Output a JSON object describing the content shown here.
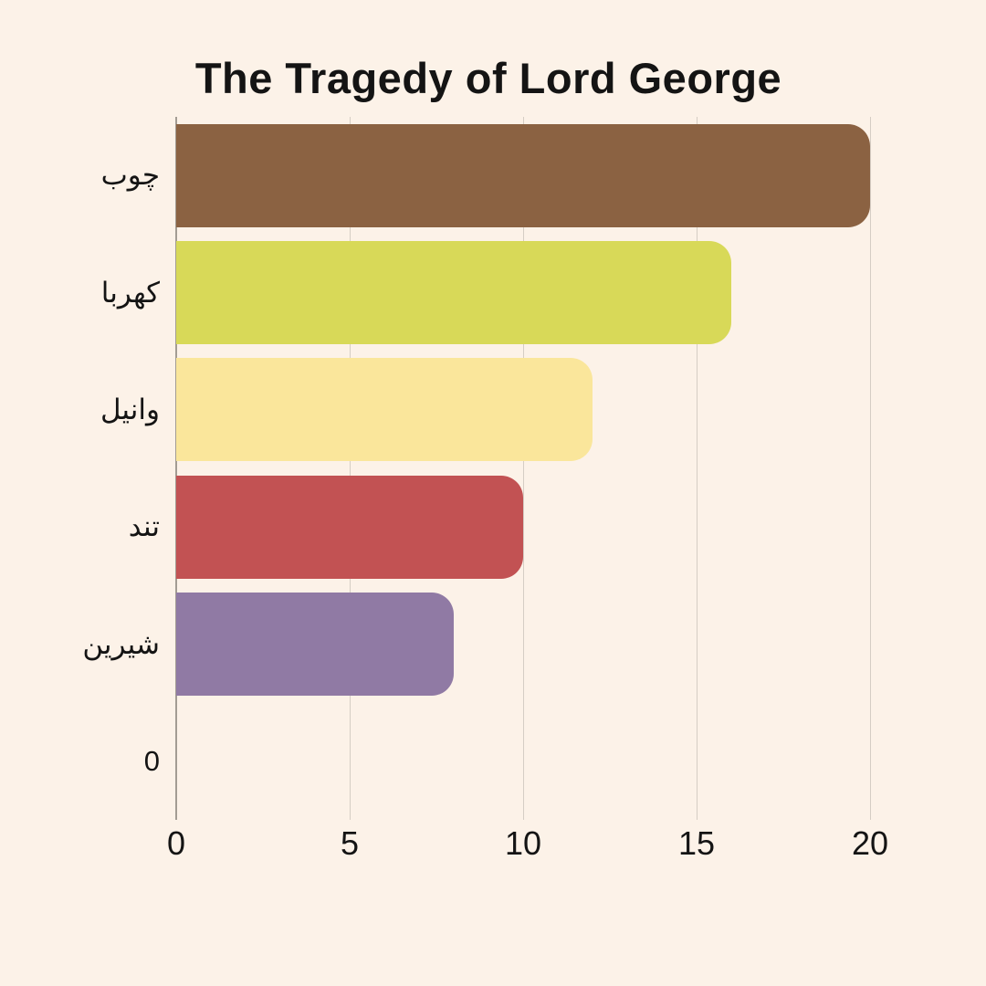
{
  "page": {
    "background": "#FCF2E8",
    "text_color": "#141414"
  },
  "chart_data": {
    "type": "bar",
    "orientation": "horizontal",
    "title": "The Tragedy of Lord George",
    "categories": [
      "چوب",
      "کهربا",
      "وانیل",
      "تند",
      "شیرین",
      "0"
    ],
    "values": [
      20,
      16,
      12,
      10,
      8,
      0
    ],
    "bar_colors": [
      "#8B6242",
      "#D8D958",
      "#FAE69B",
      "#C25253",
      "#907AA4",
      null
    ],
    "xlabel": "",
    "ylabel": "",
    "xlim": [
      0,
      20
    ],
    "x_ticks": [
      "0",
      "5",
      "10",
      "15",
      "20"
    ],
    "grid": true,
    "gridline_color": "#D5CDC4",
    "axis_line_color": "#A39C93",
    "legend": false
  }
}
